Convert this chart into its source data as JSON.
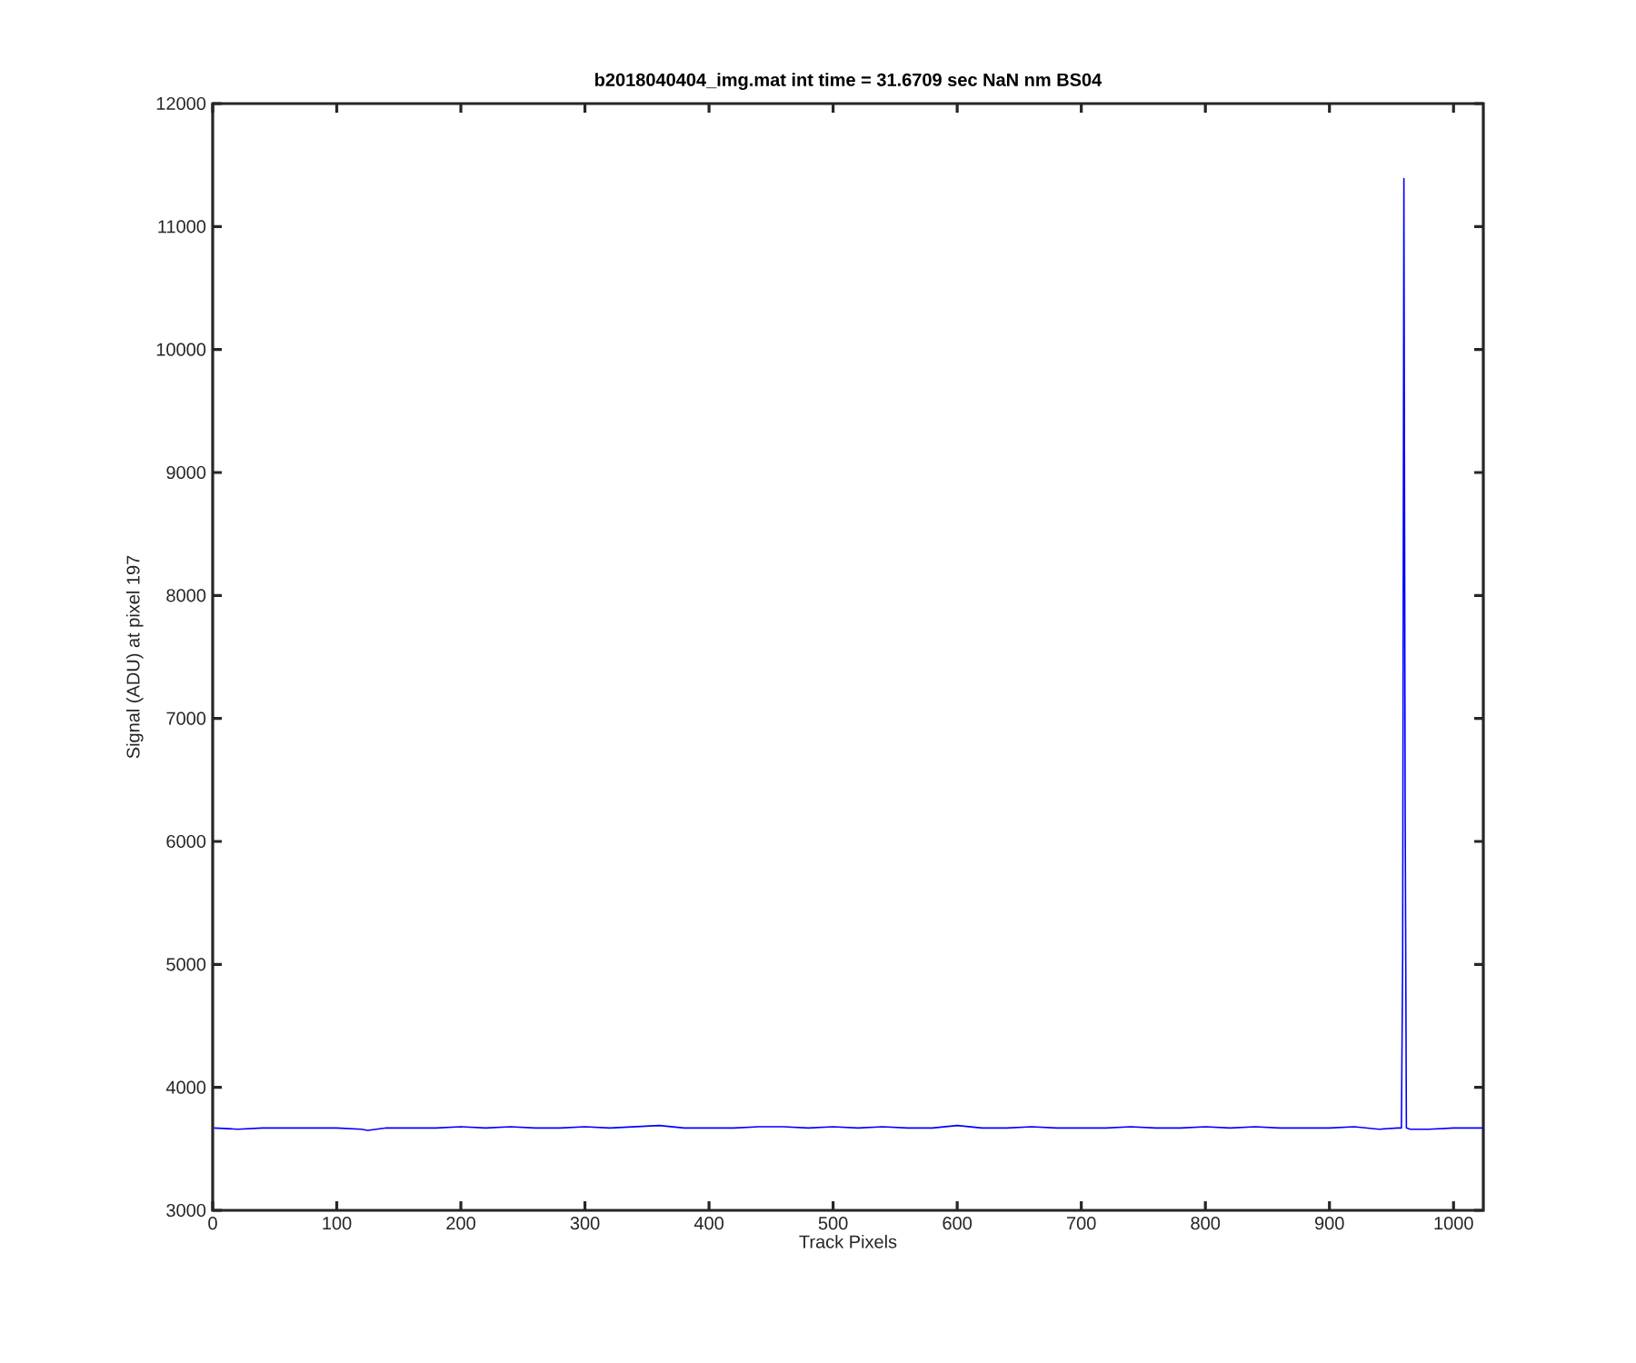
{
  "chart_data": {
    "type": "line",
    "title": "b2018040404_img.mat int time = 31.6709 sec  NaN nm BS04",
    "xlabel": "Track Pixels",
    "ylabel": "Signal (ADU) at pixel 197",
    "xlim": [
      0,
      1024
    ],
    "ylim": [
      3000,
      12000
    ],
    "xticks": [
      0,
      100,
      200,
      300,
      400,
      500,
      600,
      700,
      800,
      900,
      1000
    ],
    "yticks": [
      3000,
      4000,
      5000,
      6000,
      7000,
      8000,
      9000,
      10000,
      11000,
      12000
    ],
    "marker": "none",
    "line_style": "solid",
    "series": [
      {
        "color": "#0000ff",
        "x": [
          1,
          20,
          40,
          60,
          80,
          100,
          120,
          125,
          140,
          160,
          180,
          200,
          220,
          240,
          260,
          280,
          300,
          320,
          340,
          360,
          380,
          400,
          420,
          440,
          460,
          480,
          500,
          520,
          540,
          560,
          580,
          600,
          620,
          640,
          660,
          680,
          700,
          720,
          740,
          760,
          780,
          800,
          820,
          840,
          860,
          880,
          900,
          920,
          940,
          955,
          958,
          959,
          960,
          961,
          962,
          965,
          980,
          1000,
          1020,
          1024
        ],
        "values": [
          3670,
          3660,
          3670,
          3670,
          3670,
          3670,
          3660,
          3650,
          3670,
          3670,
          3670,
          3680,
          3670,
          3680,
          3670,
          3670,
          3680,
          3670,
          3680,
          3690,
          3670,
          3670,
          3670,
          3680,
          3680,
          3670,
          3680,
          3670,
          3680,
          3670,
          3670,
          3690,
          3670,
          3670,
          3680,
          3670,
          3670,
          3670,
          3680,
          3670,
          3670,
          3680,
          3670,
          3680,
          3670,
          3670,
          3670,
          3680,
          3660,
          3670,
          3670,
          5040,
          11390,
          6340,
          3670,
          3660,
          3660,
          3670,
          3670,
          3670
        ]
      }
    ]
  }
}
